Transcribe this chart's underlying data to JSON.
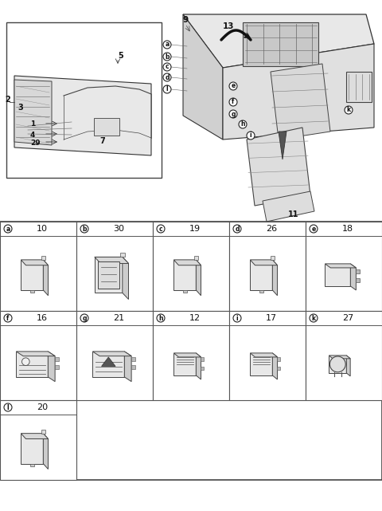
{
  "bg_color": "#ffffff",
  "table": {
    "rows": [
      [
        {
          "label": "a",
          "num": "10",
          "style": "tall_switch"
        },
        {
          "label": "b",
          "num": "30",
          "style": "tall_switch_icon"
        },
        {
          "label": "c",
          "num": "19",
          "style": "tall_switch"
        },
        {
          "label": "d",
          "num": "26",
          "style": "tall_switch"
        },
        {
          "label": "e",
          "num": "18",
          "style": "wide_switch"
        }
      ],
      [
        {
          "label": "f",
          "num": "16",
          "style": "wide_dot"
        },
        {
          "label": "g",
          "num": "21",
          "style": "wide_hazard"
        },
        {
          "label": "h",
          "num": "12",
          "style": "square_lines"
        },
        {
          "label": "i",
          "num": "17",
          "style": "square_lines"
        },
        {
          "label": "k",
          "num": "27",
          "style": "round_knob"
        }
      ],
      [
        {
          "label": "l",
          "num": "20",
          "style": "tall_switch_sm"
        },
        null,
        null,
        null,
        null
      ]
    ]
  }
}
